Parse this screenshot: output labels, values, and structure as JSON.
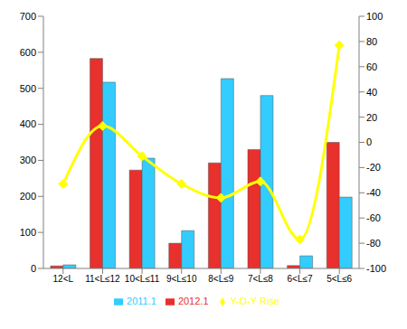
{
  "chart_data": {
    "type": "bar",
    "categories": [
      "12<L",
      "11<L≤12",
      "10<L≤11",
      "9<L≤10",
      "8<L≤9",
      "7<L≤8",
      "6<L≤7",
      "5<L≤6"
    ],
    "series": [
      {
        "name": "2012.1",
        "color": "#e8302c",
        "values": [
          7,
          583,
          273,
          70,
          293,
          330,
          8,
          350
        ]
      },
      {
        "name": "2011.1",
        "color": "#33ccff",
        "values": [
          10,
          517,
          306,
          105,
          527,
          480,
          35,
          198
        ]
      },
      {
        "name": "Y-O-Y Rise",
        "type": "line",
        "axis": "y2",
        "color": "#ffff00",
        "marker": "diamond",
        "line_style": "smooth",
        "values": [
          -33,
          13,
          -11,
          -33,
          -44,
          -31,
          -77,
          77
        ]
      }
    ],
    "ylim": [
      0,
      700
    ],
    "yticks": [
      0,
      100,
      200,
      300,
      400,
      500,
      600,
      700
    ],
    "y2lim": [
      -100,
      100
    ],
    "y2ticks": [
      -100,
      -80,
      -60,
      -40,
      -20,
      0,
      20,
      40,
      60,
      80,
      100
    ],
    "grid": false,
    "legend": "bottom"
  }
}
